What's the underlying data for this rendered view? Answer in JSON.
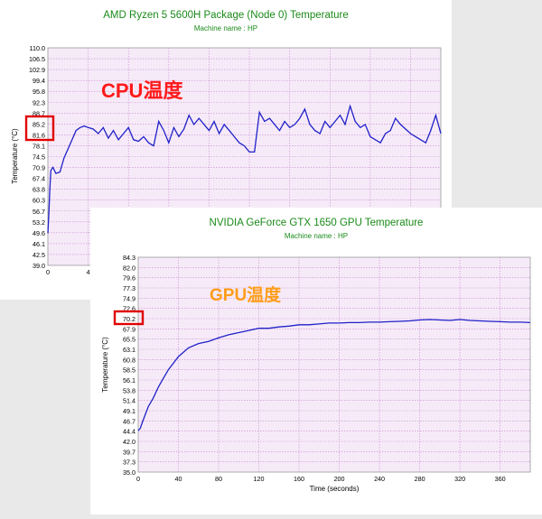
{
  "colors": {
    "plot_bg": "#f6eaf8",
    "grid": "#c88ccf",
    "line": "#1f21c8",
    "title": "#1a8a1a",
    "cpu_overlay": "#ff1a1a",
    "gpu_overlay": "#ff9d1a",
    "highlight_box": "#e00000"
  },
  "chart_data": [
    {
      "type": "line",
      "title": "AMD Ryzen 5 5600H Package (Node 0) Temperature",
      "subtitle": "Machine name : HP",
      "ylabel": "Temperature (°C)",
      "xlabel": "",
      "overlay_label": "CPU温度",
      "y_ticks": [
        "110.0",
        "106.5",
        "102.9",
        "99.4",
        "95.8",
        "92.3",
        "88.7",
        "85.2",
        "81.6",
        "78.1",
        "74.5",
        "70.9",
        "67.4",
        "63.8",
        "60.3",
        "56.7",
        "53.2",
        "49.6",
        "46.1",
        "42.5",
        "39.0"
      ],
      "x_ticks": [
        "0",
        "4"
      ],
      "ylim": [
        39.0,
        110.0
      ],
      "xlim": [
        0,
        39
      ],
      "highlight": [
        "85.2",
        "81.6"
      ],
      "grid": true,
      "series": [
        {
          "x": [
            0,
            0.1,
            0.2,
            0.3,
            0.5,
            0.8,
            1.2,
            1.6,
            2.0,
            2.4,
            2.8,
            3.2,
            3.6,
            4.0,
            4.5,
            5,
            5.5,
            6,
            6.5,
            7,
            7.5,
            8,
            8.5,
            9,
            9.5,
            10,
            10.5,
            11,
            11.5,
            12,
            12.5,
            13,
            13.5,
            14,
            14.5,
            15,
            15.5,
            16,
            16.5,
            17,
            17.5,
            18,
            18.5,
            19,
            19.5,
            20,
            20.5,
            21,
            21.5,
            22,
            22.5,
            23,
            23.5,
            24,
            24.5,
            25,
            25.5,
            26,
            26.5,
            27,
            27.5,
            28,
            28.5,
            29,
            29.5,
            30,
            30.5,
            31,
            31.5,
            32,
            32.5,
            33,
            33.5,
            34,
            34.5,
            35,
            35.5,
            36,
            36.5,
            37,
            37.5,
            38,
            38.5,
            39
          ],
          "values": [
            49.5,
            56,
            64,
            70,
            71,
            69,
            69.5,
            74,
            77,
            80,
            83,
            84,
            84.5,
            84,
            83.5,
            82,
            84,
            80.5,
            83,
            80,
            82,
            84,
            80,
            79.5,
            81,
            79,
            78,
            86,
            83,
            79,
            84,
            81,
            83.5,
            88,
            85,
            87,
            85,
            83,
            86,
            82,
            85,
            83,
            81,
            79,
            78,
            76,
            76,
            89,
            86,
            87,
            85,
            83,
            86,
            84,
            85,
            87,
            90,
            85,
            83,
            82,
            86,
            84,
            86,
            88,
            85,
            91,
            86,
            84,
            85,
            81,
            80,
            79,
            82,
            83,
            87,
            85,
            83.5,
            82,
            81,
            80,
            79,
            83,
            88,
            82
          ]
        }
      ]
    },
    {
      "type": "line",
      "title": "NVIDIA GeForce GTX 1650 GPU Temperature",
      "subtitle": "Machine name : HP",
      "ylabel": "Temperature (°C)",
      "xlabel": "Time (seconds)",
      "overlay_label": "GPU温度",
      "y_ticks": [
        "84.3",
        "82.0",
        "79.6",
        "77.3",
        "74.9",
        "72.6",
        "70.2",
        "67.9",
        "65.5",
        "63.1",
        "60.8",
        "58.5",
        "56.1",
        "53.8",
        "51.4",
        "49.1",
        "46.7",
        "44.4",
        "42.0",
        "39.7",
        "37.3",
        "35.0"
      ],
      "x_ticks": [
        "0",
        "40",
        "80",
        "120",
        "160",
        "200",
        "240",
        "280",
        "320",
        "360"
      ],
      "ylim": [
        35.0,
        84.3
      ],
      "xlim": [
        0,
        390
      ],
      "highlight": [
        "70.2"
      ],
      "grid": true,
      "series": [
        {
          "x": [
            0,
            2,
            5,
            10,
            15,
            20,
            25,
            30,
            40,
            50,
            60,
            70,
            80,
            90,
            100,
            110,
            120,
            130,
            140,
            150,
            160,
            170,
            180,
            190,
            200,
            210,
            220,
            230,
            240,
            250,
            260,
            270,
            280,
            290,
            300,
            310,
            320,
            330,
            340,
            350,
            360,
            370,
            380,
            390
          ],
          "values": [
            44.5,
            45,
            47,
            50,
            52,
            54.5,
            56.5,
            58.5,
            61.5,
            63.5,
            64.5,
            65,
            65.8,
            66.5,
            67,
            67.5,
            68,
            68,
            68.3,
            68.5,
            68.8,
            68.8,
            69,
            69.2,
            69.2,
            69.3,
            69.3,
            69.4,
            69.4,
            69.5,
            69.6,
            69.7,
            69.9,
            70.0,
            69.9,
            69.8,
            70.0,
            69.8,
            69.7,
            69.6,
            69.5,
            69.4,
            69.4,
            69.3
          ]
        }
      ]
    }
  ]
}
